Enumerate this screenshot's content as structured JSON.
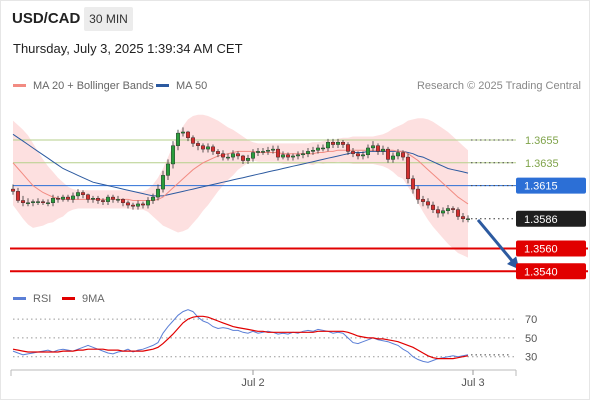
{
  "header": {
    "pair": "USD/CAD",
    "timeframe": "30 MIN"
  },
  "datetime": "Thursday, July 3, 2025 1:39:34 AM CET",
  "copyright": "Research © 2025 Trading Central",
  "colors": {
    "up": "#2a9d3c",
    "down": "#d32f2f",
    "ma20": "#f28b82",
    "ma50": "#2c5aa0",
    "band": "#fde0e0",
    "resistance_green": "#b5cf8b",
    "support_red": "#e10000",
    "pivot_blue": "#2c6fd6",
    "rsi": "#5b7fd6",
    "rsi_ma": "#e10000",
    "arrow": "#2c5aa0"
  },
  "chart_data": [
    {
      "type": "candlestick",
      "title": "USD/CAD",
      "legend": [
        {
          "name": "MA 20 + Bollinger Bands",
          "color": "#f28b82"
        },
        {
          "name": "MA 50",
          "color": "#2c5aa0"
        }
      ],
      "ylim": [
        1.3528,
        1.369
      ],
      "x_tick_labels": [
        {
          "label": "Jul 2",
          "index": 48
        },
        {
          "label": "Jul 3",
          "index": 92
        }
      ],
      "levels": [
        {
          "value": 1.3655,
          "label": "1.3655",
          "kind": "resistance"
        },
        {
          "value": 1.3635,
          "label": "1.3635",
          "kind": "resistance"
        },
        {
          "value": 1.3615,
          "label": "1.3615",
          "kind": "pivot"
        },
        {
          "value": 1.3586,
          "label": "1.3586",
          "kind": "last"
        },
        {
          "value": 1.356,
          "label": "1.3560",
          "kind": "support"
        },
        {
          "value": 1.354,
          "label": "1.3540",
          "kind": "support"
        }
      ],
      "forecast_arrow": {
        "from": [
          93,
          1.3585
        ],
        "to": [
          101,
          1.3543
        ]
      },
      "candles": {
        "open": [
          1.3612,
          1.361,
          1.3602,
          1.36,
          1.36,
          1.3601,
          1.3601,
          1.36,
          1.36,
          1.3604,
          1.3603,
          1.3605,
          1.3603,
          1.3606,
          1.3609,
          1.3607,
          1.3603,
          1.3604,
          1.3602,
          1.3601,
          1.3605,
          1.3603,
          1.3603,
          1.36,
          1.3598,
          1.3597,
          1.3599,
          1.3598,
          1.3602,
          1.3605,
          1.3612,
          1.3624,
          1.3634,
          1.365,
          1.3661,
          1.3662,
          1.3657,
          1.3652,
          1.365,
          1.3647,
          1.3649,
          1.3645,
          1.3643,
          1.364,
          1.364,
          1.3643,
          1.3641,
          1.3637,
          1.3639,
          1.3644,
          1.3645,
          1.3645,
          1.3646,
          1.3647,
          1.364,
          1.3642,
          1.364,
          1.3641,
          1.3642,
          1.3643,
          1.3645,
          1.3646,
          1.3648,
          1.3648,
          1.3653,
          1.3651,
          1.3653,
          1.3651,
          1.3645,
          1.3643,
          1.3641,
          1.3642,
          1.3648,
          1.365,
          1.3645,
          1.3647,
          1.3638,
          1.3641,
          1.3644,
          1.364,
          1.3621,
          1.3612,
          1.3603,
          1.3601,
          1.3598,
          1.3594,
          1.3591,
          1.3593,
          1.3595,
          1.3594,
          1.3588,
          1.3586
        ],
        "close": [
          1.361,
          1.3602,
          1.36,
          1.36,
          1.3601,
          1.3601,
          1.36,
          1.36,
          1.3604,
          1.3603,
          1.3605,
          1.3603,
          1.3606,
          1.3609,
          1.3607,
          1.3603,
          1.3604,
          1.3602,
          1.3601,
          1.3605,
          1.3603,
          1.3603,
          1.36,
          1.3598,
          1.3597,
          1.3599,
          1.3598,
          1.3602,
          1.3605,
          1.3612,
          1.3624,
          1.3634,
          1.365,
          1.3661,
          1.3662,
          1.3657,
          1.3652,
          1.365,
          1.3647,
          1.3649,
          1.3645,
          1.3643,
          1.364,
          1.364,
          1.3643,
          1.3641,
          1.3637,
          1.3639,
          1.3644,
          1.3645,
          1.3645,
          1.3646,
          1.3647,
          1.364,
          1.3642,
          1.364,
          1.3641,
          1.3642,
          1.3643,
          1.3645,
          1.3646,
          1.3648,
          1.3648,
          1.3653,
          1.3651,
          1.3653,
          1.3651,
          1.3645,
          1.3643,
          1.3641,
          1.3642,
          1.3648,
          1.365,
          1.3645,
          1.3647,
          1.3638,
          1.3641,
          1.3644,
          1.364,
          1.3621,
          1.3612,
          1.3603,
          1.3601,
          1.3598,
          1.3594,
          1.3591,
          1.3593,
          1.3595,
          1.3594,
          1.3588,
          1.3586,
          1.3586
        ],
        "high": [
          1.3616,
          1.3613,
          1.3606,
          1.3604,
          1.3603,
          1.3604,
          1.3603,
          1.3603,
          1.3607,
          1.3606,
          1.3607,
          1.3607,
          1.3609,
          1.3612,
          1.3611,
          1.3608,
          1.3606,
          1.3606,
          1.3604,
          1.3607,
          1.3607,
          1.3606,
          1.3604,
          1.3602,
          1.36,
          1.3602,
          1.3601,
          1.3605,
          1.3608,
          1.3616,
          1.3628,
          1.3638,
          1.3654,
          1.3664,
          1.3666,
          1.3663,
          1.3659,
          1.3654,
          1.3652,
          1.3652,
          1.3651,
          1.3647,
          1.3646,
          1.3643,
          1.3646,
          1.3645,
          1.3642,
          1.3642,
          1.3647,
          1.3648,
          1.3648,
          1.3649,
          1.365,
          1.365,
          1.3645,
          1.3644,
          1.3643,
          1.3645,
          1.3646,
          1.3648,
          1.3649,
          1.3651,
          1.3651,
          1.3656,
          1.3656,
          1.3656,
          1.3655,
          1.3653,
          1.3648,
          1.3645,
          1.3645,
          1.3651,
          1.3654,
          1.3652,
          1.365,
          1.3649,
          1.3644,
          1.3647,
          1.3646,
          1.3643,
          1.3624,
          1.3615,
          1.3606,
          1.3604,
          1.3601,
          1.3597,
          1.3596,
          1.3598,
          1.3597,
          1.3596,
          1.3591,
          1.3589
        ],
        "low": [
          1.3607,
          1.36,
          1.3597,
          1.3597,
          1.3597,
          1.3598,
          1.3598,
          1.3597,
          1.3597,
          1.36,
          1.3601,
          1.3601,
          1.36,
          1.3603,
          1.3604,
          1.36,
          1.36,
          1.3599,
          1.3598,
          1.3598,
          1.36,
          1.36,
          1.3597,
          1.3595,
          1.3594,
          1.3594,
          1.3595,
          1.3595,
          1.3599,
          1.3602,
          1.3609,
          1.362,
          1.363,
          1.3646,
          1.3658,
          1.3654,
          1.3649,
          1.3646,
          1.3644,
          1.3644,
          1.3642,
          1.364,
          1.3637,
          1.3637,
          1.3637,
          1.3638,
          1.3634,
          1.3634,
          1.3636,
          1.3641,
          1.3642,
          1.3642,
          1.3643,
          1.3637,
          1.3638,
          1.3637,
          1.3637,
          1.3638,
          1.3639,
          1.364,
          1.3642,
          1.3643,
          1.3645,
          1.3645,
          1.3648,
          1.3648,
          1.3648,
          1.3642,
          1.364,
          1.3638,
          1.3638,
          1.3639,
          1.3645,
          1.3642,
          1.3642,
          1.3635,
          1.3635,
          1.3638,
          1.3637,
          1.3617,
          1.3608,
          1.3599,
          1.3597,
          1.3595,
          1.3591,
          1.3587,
          1.3588,
          1.359,
          1.3591,
          1.3585,
          1.3583,
          1.3583
        ]
      },
      "ma20": [
        1.3635,
        1.363,
        1.3625,
        1.362,
        1.3615,
        1.3612,
        1.3609,
        1.3607,
        1.3605,
        1.3604,
        1.3603,
        1.3603,
        1.3603,
        1.3603,
        1.3603,
        1.3603,
        1.3603,
        1.3603,
        1.3603,
        1.3603,
        1.3603,
        1.3603,
        1.3603,
        1.3603,
        1.3602,
        1.3602,
        1.3602,
        1.3602,
        1.3602,
        1.3603,
        1.3605,
        1.3609,
        1.3613,
        1.3617,
        1.3621,
        1.3625,
        1.3629,
        1.3632,
        1.3635,
        1.3637,
        1.3639,
        1.3641,
        1.3642,
        1.3643,
        1.3644,
        1.3645,
        1.3645,
        1.3645,
        1.3645,
        1.3644,
        1.3644,
        1.3644,
        1.3644,
        1.3644,
        1.3643,
        1.3643,
        1.3643,
        1.3643,
        1.3643,
        1.3643,
        1.3643,
        1.3644,
        1.3644,
        1.3645,
        1.3645,
        1.3646,
        1.3646,
        1.3646,
        1.3646,
        1.3646,
        1.3646,
        1.3646,
        1.3646,
        1.3646,
        1.3646,
        1.3646,
        1.3646,
        1.3645,
        1.3645,
        1.3643,
        1.364,
        1.3637,
        1.3633,
        1.3629,
        1.3625,
        1.3621,
        1.3617,
        1.3613,
        1.3609,
        1.3605,
        1.3602,
        1.3599
      ],
      "bb_upper": [
        1.3672,
        1.3668,
        1.3664,
        1.3659,
        1.3652,
        1.3645,
        1.3638,
        1.3632,
        1.3627,
        1.3622,
        1.3618,
        1.3614,
        1.3612,
        1.3611,
        1.3611,
        1.3611,
        1.3611,
        1.3611,
        1.3611,
        1.3611,
        1.3611,
        1.3611,
        1.3611,
        1.3611,
        1.361,
        1.361,
        1.361,
        1.3612,
        1.3616,
        1.3622,
        1.363,
        1.364,
        1.365,
        1.366,
        1.3667,
        1.3673,
        1.3676,
        1.3677,
        1.3677,
        1.3676,
        1.3674,
        1.3672,
        1.3669,
        1.3666,
        1.3664,
        1.3661,
        1.3658,
        1.3655,
        1.3653,
        1.3652,
        1.3652,
        1.3652,
        1.3652,
        1.3652,
        1.3652,
        1.3652,
        1.3652,
        1.3652,
        1.3652,
        1.3652,
        1.3653,
        1.3653,
        1.3654,
        1.3655,
        1.3655,
        1.3656,
        1.3657,
        1.3657,
        1.3658,
        1.3658,
        1.3658,
        1.3658,
        1.3658,
        1.3659,
        1.366,
        1.3662,
        1.3665,
        1.3667,
        1.3669,
        1.3672,
        1.3673,
        1.3674,
        1.3674,
        1.3673,
        1.3671,
        1.3668,
        1.3665,
        1.3662,
        1.3658,
        1.3654,
        1.365,
        1.3646
      ],
      "bb_lower": [
        1.3598,
        1.3592,
        1.3586,
        1.3581,
        1.3578,
        1.3579,
        1.358,
        1.3582,
        1.3583,
        1.3586,
        1.3588,
        1.3592,
        1.3594,
        1.3595,
        1.3595,
        1.3595,
        1.3595,
        1.3595,
        1.3595,
        1.3595,
        1.3595,
        1.3595,
        1.3595,
        1.3595,
        1.3594,
        1.3594,
        1.3594,
        1.3592,
        1.3588,
        1.3584,
        1.358,
        1.3578,
        1.3576,
        1.3574,
        1.3575,
        1.3577,
        1.3582,
        1.3587,
        1.3593,
        1.3598,
        1.3604,
        1.361,
        1.3615,
        1.362,
        1.3624,
        1.3629,
        1.3632,
        1.3635,
        1.3637,
        1.3636,
        1.3636,
        1.3636,
        1.3636,
        1.3636,
        1.3634,
        1.3634,
        1.3634,
        1.3634,
        1.3634,
        1.3634,
        1.3633,
        1.3635,
        1.3634,
        1.3635,
        1.3635,
        1.3636,
        1.3635,
        1.3635,
        1.3634,
        1.3634,
        1.3634,
        1.3634,
        1.3634,
        1.3633,
        1.3632,
        1.363,
        1.3627,
        1.3623,
        1.3621,
        1.3614,
        1.3607,
        1.36,
        1.3592,
        1.3585,
        1.3579,
        1.3574,
        1.3569,
        1.3564,
        1.356,
        1.3556,
        1.3554,
        1.3552
      ],
      "ma50": [
        1.366,
        1.3657,
        1.3654,
        1.3651,
        1.3648,
        1.3645,
        1.3642,
        1.3639,
        1.3636,
        1.3633,
        1.363,
        1.3628,
        1.3626,
        1.3624,
        1.3622,
        1.362,
        1.3618,
        1.3617,
        1.3616,
        1.3615,
        1.3614,
        1.3613,
        1.3612,
        1.3611,
        1.361,
        1.3609,
        1.3608,
        1.3607,
        1.3606,
        1.3606,
        1.3606,
        1.3607,
        1.3608,
        1.3609,
        1.361,
        1.3611,
        1.3612,
        1.3613,
        1.3614,
        1.3615,
        1.3616,
        1.3617,
        1.3618,
        1.3619,
        1.362,
        1.3621,
        1.3622,
        1.3623,
        1.3624,
        1.3625,
        1.3626,
        1.3627,
        1.3628,
        1.3629,
        1.363,
        1.3631,
        1.3632,
        1.3633,
        1.3634,
        1.3635,
        1.3636,
        1.3637,
        1.3638,
        1.3639,
        1.364,
        1.3641,
        1.3642,
        1.3643,
        1.3644,
        1.3644,
        1.3644,
        1.3645,
        1.3645,
        1.3645,
        1.3645,
        1.3645,
        1.3645,
        1.3645,
        1.3645,
        1.3644,
        1.3643,
        1.3641,
        1.364,
        1.3638,
        1.3636,
        1.3634,
        1.3632,
        1.363,
        1.3629,
        1.3628,
        1.3627,
        1.3626
      ]
    },
    {
      "type": "line",
      "title": "RSI",
      "legend": [
        {
          "name": "RSI",
          "color": "#5b7fd6"
        },
        {
          "name": "9MA",
          "color": "#e10000"
        }
      ],
      "ylim": [
        18,
        85
      ],
      "y_ticks": [
        30,
        50,
        70
      ],
      "rsi": [
        36,
        34,
        32,
        33,
        34,
        35,
        36,
        37,
        35,
        37,
        38,
        37,
        36,
        38,
        40,
        42,
        40,
        38,
        36,
        34,
        33,
        35,
        36,
        38,
        35,
        37,
        38,
        40,
        42,
        45,
        55,
        62,
        68,
        74,
        78,
        80,
        78,
        72,
        68,
        66,
        62,
        60,
        61,
        60,
        58,
        58,
        56,
        55,
        57,
        55,
        56,
        57,
        56,
        54,
        55,
        54,
        56,
        55,
        57,
        58,
        57,
        59,
        58,
        57,
        55,
        56,
        55,
        50,
        45,
        44,
        46,
        48,
        50,
        48,
        47,
        46,
        44,
        42,
        38,
        35,
        30,
        27,
        25,
        24,
        26,
        28,
        29,
        30,
        31,
        30,
        31,
        32
      ],
      "ma9": [
        38,
        37,
        36,
        35,
        35,
        35,
        35,
        35,
        35,
        35,
        36,
        36,
        36,
        37,
        37,
        38,
        38,
        38,
        38,
        37,
        37,
        37,
        36,
        36,
        36,
        36,
        36,
        37,
        38,
        40,
        44,
        49,
        54,
        60,
        66,
        70,
        72,
        73,
        73,
        72,
        70,
        68,
        66,
        64,
        62,
        61,
        60,
        59,
        58,
        57,
        57,
        56,
        56,
        56,
        56,
        56,
        56,
        56,
        56,
        56,
        56,
        57,
        57,
        57,
        57,
        57,
        57,
        56,
        54,
        52,
        51,
        50,
        50,
        49,
        49,
        48,
        47,
        46,
        44,
        42,
        40,
        37,
        34,
        31,
        29,
        28,
        28,
        28,
        28,
        29,
        30,
        31
      ]
    }
  ]
}
